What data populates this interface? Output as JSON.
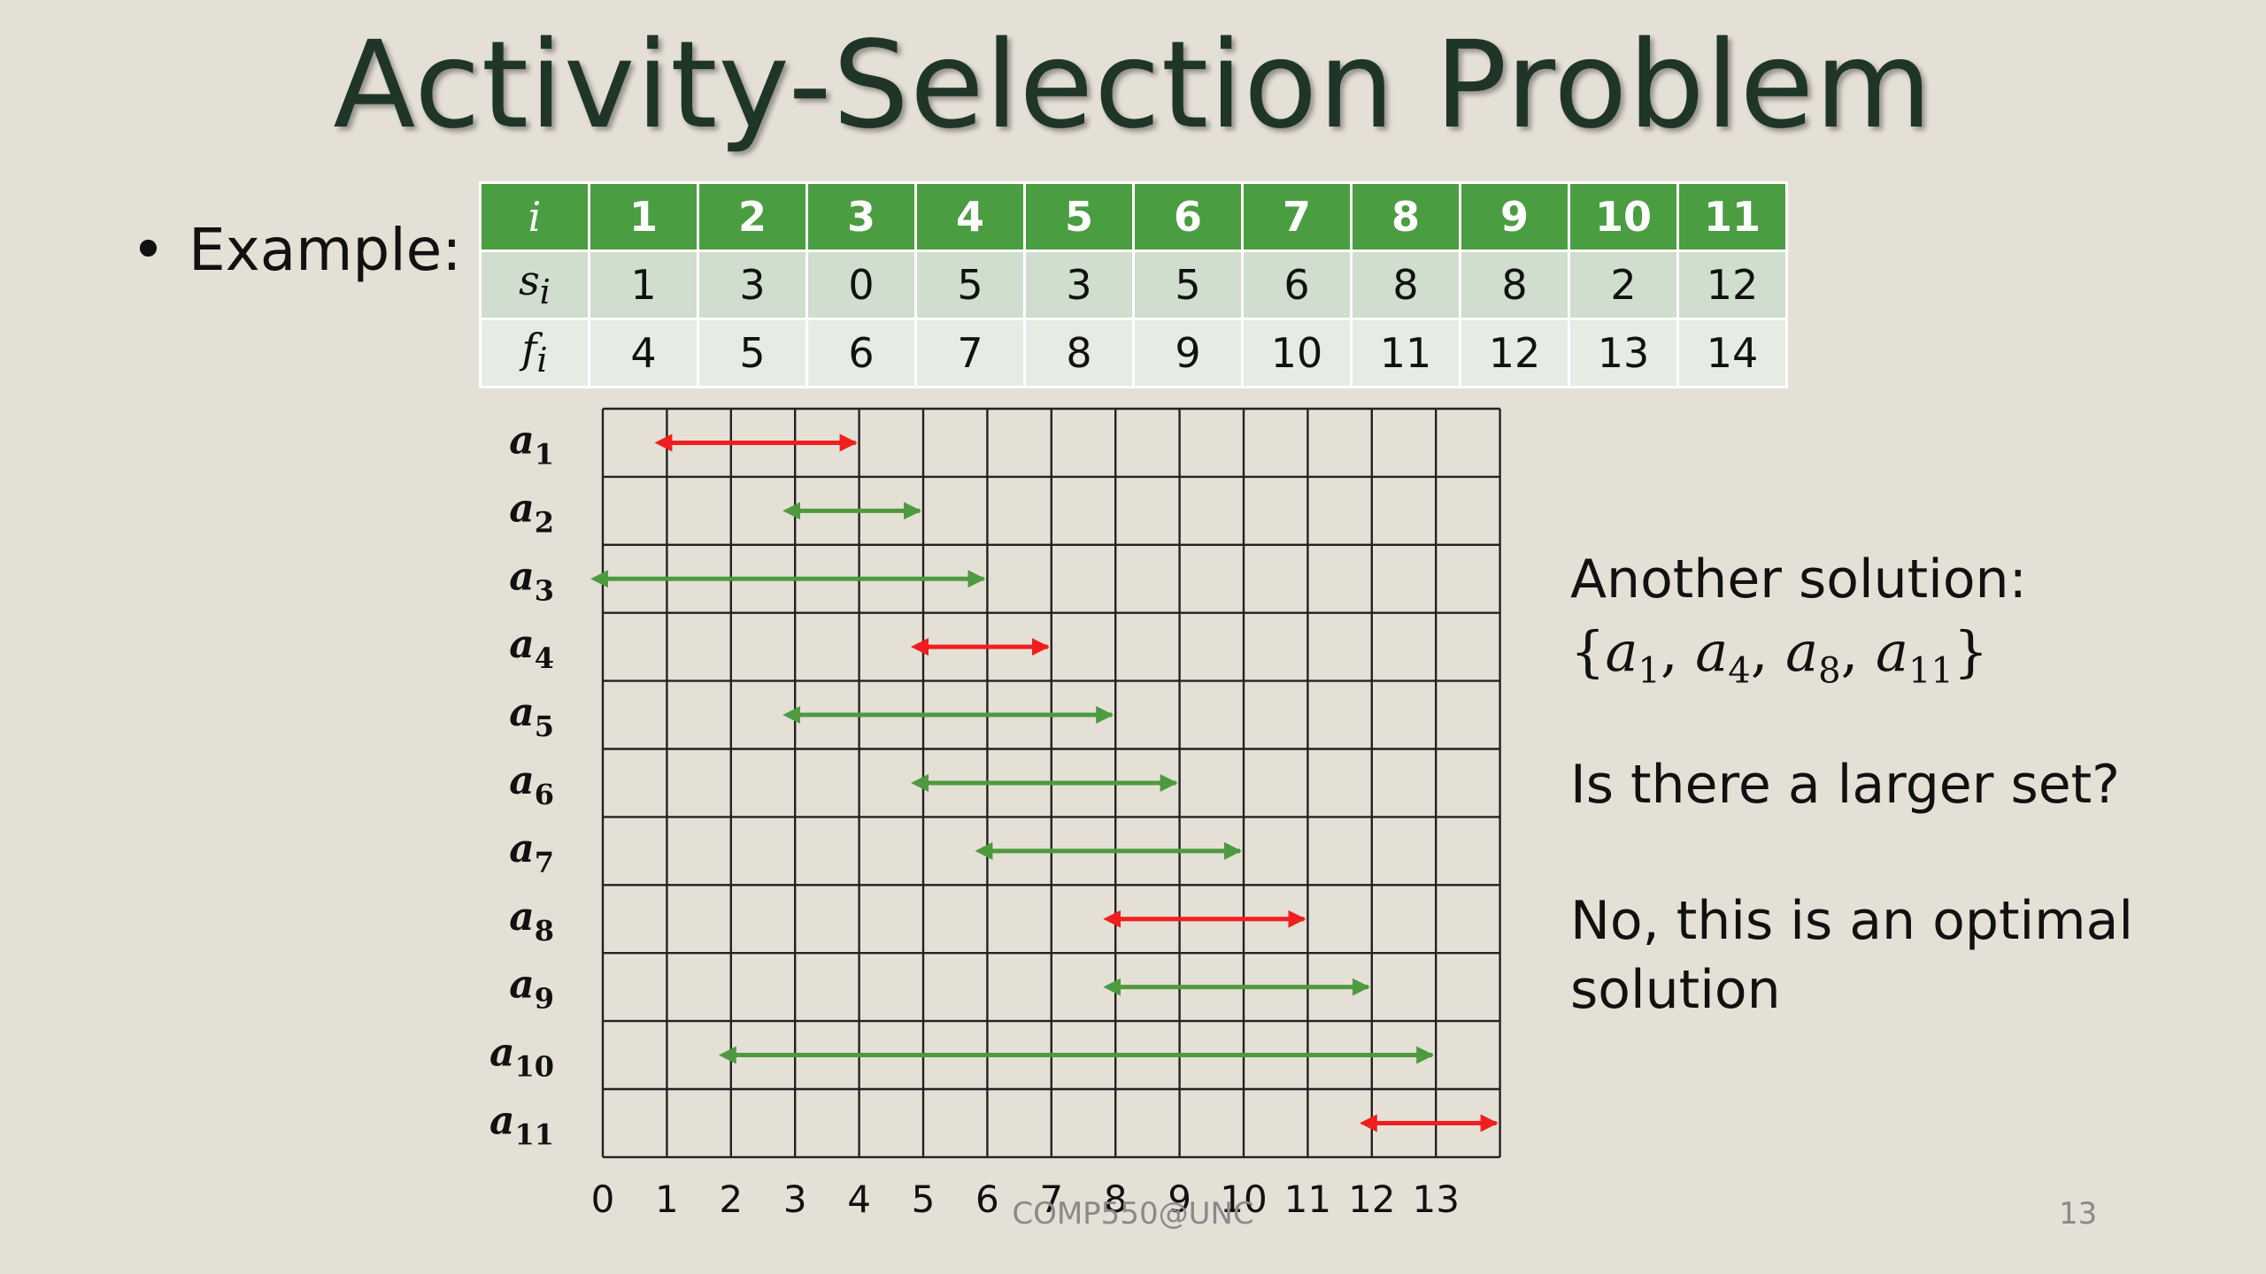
{
  "title": "Activity-Selection Problem",
  "bullet": {
    "dot": "•",
    "text": "Example:"
  },
  "table": {
    "row_labels": {
      "i": "i",
      "s_main": "s",
      "s_sub": "i",
      "f_main": "f",
      "f_sub": "i"
    },
    "i": [
      "1",
      "2",
      "3",
      "4",
      "5",
      "6",
      "7",
      "8",
      "9",
      "10",
      "11"
    ],
    "s": [
      "1",
      "3",
      "0",
      "5",
      "3",
      "5",
      "6",
      "8",
      "8",
      "2",
      "12"
    ],
    "f": [
      "4",
      "5",
      "6",
      "7",
      "8",
      "9",
      "10",
      "11",
      "12",
      "13",
      "14"
    ]
  },
  "chart_data": {
    "type": "gantt",
    "x_ticks": [
      "0",
      "1",
      "2",
      "3",
      "4",
      "5",
      "6",
      "7",
      "8",
      "9",
      "10",
      "11",
      "12",
      "13"
    ],
    "activities": [
      {
        "main": "a",
        "sub": "1",
        "start": 1,
        "finish": 4,
        "selected": true
      },
      {
        "main": "a",
        "sub": "2",
        "start": 3,
        "finish": 5,
        "selected": false
      },
      {
        "main": "a",
        "sub": "3",
        "start": 0,
        "finish": 6,
        "selected": false
      },
      {
        "main": "a",
        "sub": "4",
        "start": 5,
        "finish": 7,
        "selected": true
      },
      {
        "main": "a",
        "sub": "5",
        "start": 3,
        "finish": 8,
        "selected": false
      },
      {
        "main": "a",
        "sub": "6",
        "start": 5,
        "finish": 9,
        "selected": false
      },
      {
        "main": "a",
        "sub": "7",
        "start": 6,
        "finish": 10,
        "selected": false
      },
      {
        "main": "a",
        "sub": "8",
        "start": 8,
        "finish": 11,
        "selected": true
      },
      {
        "main": "a",
        "sub": "9",
        "start": 8,
        "finish": 12,
        "selected": false
      },
      {
        "main": "a",
        "sub": "10",
        "start": 2,
        "finish": 13,
        "selected": false
      },
      {
        "main": "a",
        "sub": "11",
        "start": 12,
        "finish": 14,
        "selected": true
      }
    ],
    "colors": {
      "selected": "#f01e1e",
      "other": "#4e9a3e",
      "grid": "#222222"
    }
  },
  "side": {
    "another": "Another solution:",
    "set": {
      "open": "{",
      "close": "}",
      "sep": ", ",
      "items": [
        {
          "main": "a",
          "sub": "1"
        },
        {
          "main": "a",
          "sub": "4"
        },
        {
          "main": "a",
          "sub": "8"
        },
        {
          "main": "a",
          "sub": "11"
        }
      ]
    },
    "question": "Is there a larger set?",
    "answer_line1": "No, this is an optimal",
    "answer_line2": "solution"
  },
  "footer": "COMP550@UNC",
  "page_number": "13"
}
